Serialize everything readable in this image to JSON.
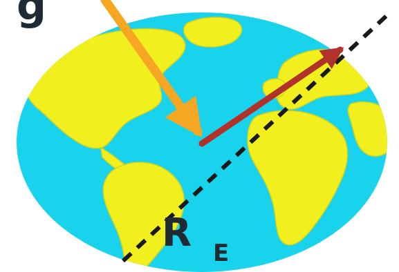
{
  "labels": {
    "gravity": "g",
    "radius_main": "R",
    "radius_sub": "E"
  },
  "colors": {
    "ocean": "#19d3ec",
    "land": "#f2ef1f",
    "land_edge": "#d6d31c",
    "gravity_arrow": "#f5a623",
    "radius_arrow": "#b0322a",
    "axis": "#1a1a1a",
    "label": "#1f2a33",
    "background": "#ffffff"
  },
  "icons": {
    "globe": "earth-globe-icon"
  }
}
